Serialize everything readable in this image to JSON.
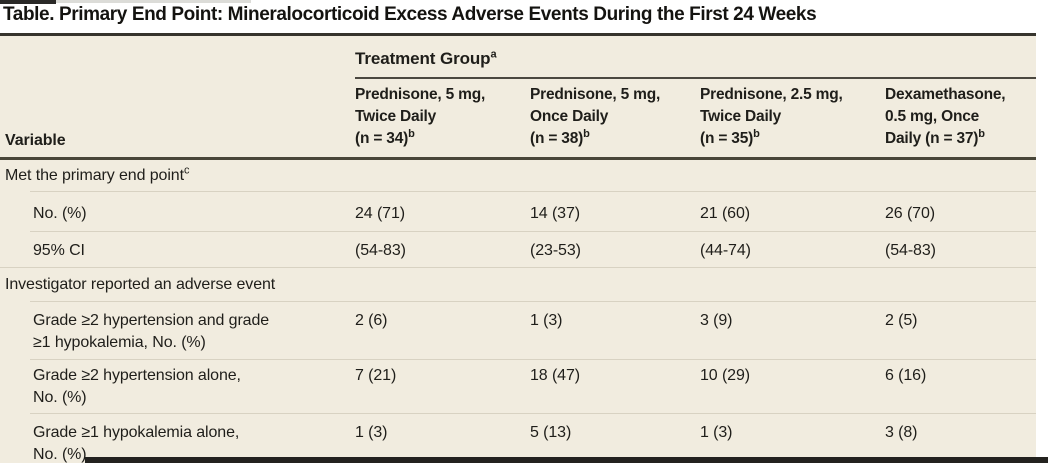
{
  "page": {
    "title": "Table. Primary End Point: Mineralocorticoid Excess Adverse Events During the First 24 Weeks"
  },
  "colors": {
    "table_background": "#f1ecdf",
    "heavy_rule": "#36342d",
    "dark_rule": "#494639",
    "hairline": "#d8d2c2",
    "text": "#1f1e1a"
  },
  "table": {
    "variable_header": "Variable",
    "group_header": {
      "label": "Treatment Group",
      "sup": "a"
    },
    "columns": [
      {
        "line1": "Prednisone, 5 mg,",
        "line2": "Twice Daily",
        "line3": "(n = 34)",
        "sup": "b"
      },
      {
        "line1": "Prednisone, 5 mg,",
        "line2": "Once Daily",
        "line3": "(n = 38)",
        "sup": "b"
      },
      {
        "line1": "Prednisone, 2.5 mg,",
        "line2": "Twice Daily",
        "line3": "(n = 35)",
        "sup": "b"
      },
      {
        "line1": "Dexamethasone,",
        "line2": "0.5 mg, Once",
        "line3": "Daily (n = 37)",
        "sup": "b"
      }
    ],
    "sections": [
      {
        "header": "Met the primary end point",
        "header_sup": "c",
        "rows": [
          {
            "label_line1": "No. (%)",
            "label_line2": "",
            "values": [
              "24 (71)",
              "14 (37)",
              "21 (60)",
              "26 (70)"
            ]
          },
          {
            "label_line1": "95% CI",
            "label_line2": "",
            "values": [
              "(54-83)",
              "(23-53)",
              "(44-74)",
              "(54-83)"
            ]
          }
        ]
      },
      {
        "header": "Investigator reported an adverse event",
        "header_sup": "",
        "rows": [
          {
            "label_line1": "Grade ≥2 hypertension and grade",
            "label_line2": "≥1 hypokalemia, No. (%)",
            "values": [
              "2 (6)",
              "1 (3)",
              "3 (9)",
              "2 (5)"
            ]
          },
          {
            "label_line1": "Grade ≥2 hypertension alone,",
            "label_line2": "No. (%)",
            "values": [
              "7 (21)",
              "18 (47)",
              "10 (29)",
              "6 (16)"
            ]
          },
          {
            "label_line1": "Grade ≥1 hypokalemia alone,",
            "label_line2": "No. (%)",
            "values": [
              "1 (3)",
              "5 (13)",
              "1 (3)",
              "3 (8)"
            ]
          }
        ]
      }
    ]
  }
}
